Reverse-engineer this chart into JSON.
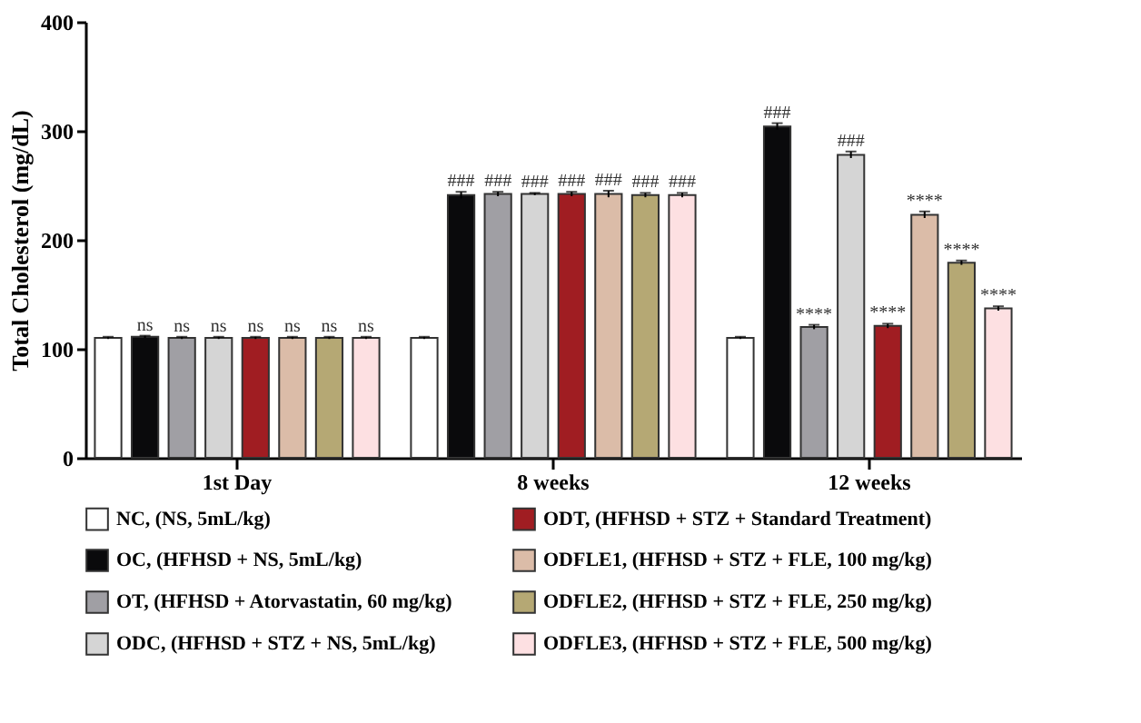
{
  "chart_data": {
    "type": "bar",
    "ylabel": "Total Cholesterol (mg/dL)",
    "categories": [
      "1st Day",
      "8 weeks",
      "12 weeks"
    ],
    "ylim": [
      0,
      400
    ],
    "yticks": [
      0,
      100,
      200,
      300,
      400
    ],
    "grid": false,
    "legend": "bottom",
    "series": [
      {
        "name": "NC,  (NS, 5mL/kg)",
        "color": "#ffffff",
        "values": [
          110,
          110,
          110
        ],
        "errors": [
          1,
          1,
          1
        ],
        "value_labels": [
          null,
          null,
          null
        ]
      },
      {
        "name": "OC, (HFHSD + NS, 5mL/kg)",
        "color": "#0a0a0c",
        "values": [
          111,
          241,
          304
        ],
        "errors": [
          1,
          3,
          3
        ],
        "value_labels": [
          "ns",
          "###",
          "###"
        ]
      },
      {
        "name": "OT, (HFHSD + Atorvastatin, 60 mg/kg)",
        "color": "#a09fa4",
        "values": [
          110,
          242,
          120
        ],
        "errors": [
          1,
          2,
          2
        ],
        "value_labels": [
          "ns",
          "###",
          "****"
        ]
      },
      {
        "name": "ODC, (HFHSD + STZ + NS, 5mL/kg)",
        "color": "#d5d5d5",
        "values": [
          110,
          242,
          278
        ],
        "errors": [
          1,
          1,
          3
        ],
        "value_labels": [
          "ns",
          "###",
          "###"
        ]
      },
      {
        "name": "ODT, (HFHSD + STZ + Standard Treatment)",
        "color": "#a01d22",
        "values": [
          110,
          242,
          121
        ],
        "errors": [
          1,
          2,
          2
        ],
        "value_labels": [
          "ns",
          "###",
          "****"
        ]
      },
      {
        "name": "ODFLE1, (HFHSD + STZ + FLE, 100 mg/kg)",
        "color": "#dbbca8",
        "values": [
          110,
          242,
          223
        ],
        "errors": [
          1,
          3,
          3
        ],
        "value_labels": [
          "ns",
          "###",
          "****"
        ]
      },
      {
        "name": "ODFLE2, (HFHSD + STZ + FLE, 250 mg/kg)",
        "color": "#b5a874",
        "values": [
          110,
          241,
          179
        ],
        "errors": [
          1,
          2,
          2
        ],
        "value_labels": [
          "ns",
          "###",
          "****"
        ]
      },
      {
        "name": "ODFLE3, (HFHSD + STZ + FLE, 500 mg/kg)",
        "color": "#fde0e2",
        "values": [
          110,
          241,
          137
        ],
        "errors": [
          1,
          2,
          2
        ],
        "value_labels": [
          "ns",
          "###",
          "****"
        ]
      }
    ]
  }
}
